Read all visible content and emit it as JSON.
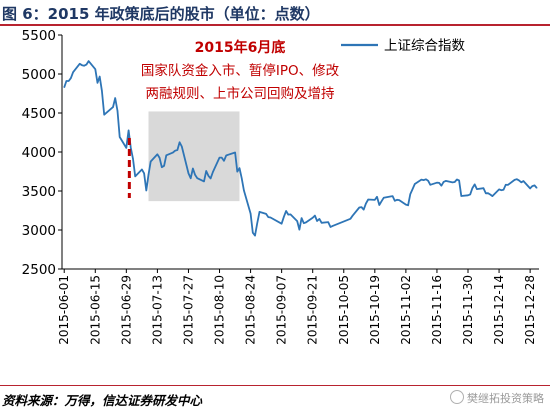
{
  "header": {
    "title": "图 6：2015 年政策底后的股市（单位：点数）"
  },
  "footer": {
    "source": "资料来源：万得，信达证券研发中心",
    "watermark": "樊继拓投资策略"
  },
  "chart_data": {
    "type": "line",
    "title": "",
    "xlabel": "",
    "ylabel": "",
    "ylim": [
      2500,
      5500
    ],
    "yticks": [
      2500,
      3000,
      3500,
      4000,
      4500,
      5000,
      5500
    ],
    "grid": false,
    "legend_position": "top-right",
    "x_tick_labels": [
      "2015-06-01",
      "2015-06-15",
      "2015-06-29",
      "2015-07-13",
      "2015-07-27",
      "2015-08-10",
      "2015-08-24",
      "2015-09-07",
      "2015-09-21",
      "2015-10-05",
      "2015-10-19",
      "2015-11-02",
      "2015-11-16",
      "2015-11-30",
      "2015-12-14",
      "2015-12-28"
    ],
    "x_range": [
      "2015-06-01",
      "2015-12-31"
    ],
    "series": [
      {
        "name": "上证综合指数",
        "color": "#2e75b6",
        "points": [
          [
            "2015-06-01",
            4828
          ],
          [
            "2015-06-02",
            4910
          ],
          [
            "2015-06-03",
            4910
          ],
          [
            "2015-06-04",
            4947
          ],
          [
            "2015-06-05",
            5023
          ],
          [
            "2015-06-08",
            5131
          ],
          [
            "2015-06-09",
            5113
          ],
          [
            "2015-06-10",
            5106
          ],
          [
            "2015-06-11",
            5121
          ],
          [
            "2015-06-12",
            5166
          ],
          [
            "2015-06-15",
            5062
          ],
          [
            "2015-06-16",
            4887
          ],
          [
            "2015-06-17",
            4967
          ],
          [
            "2015-06-18",
            4785
          ],
          [
            "2015-06-19",
            4478
          ],
          [
            "2015-06-23",
            4576
          ],
          [
            "2015-06-24",
            4691
          ],
          [
            "2015-06-25",
            4527
          ],
          [
            "2015-06-26",
            4192
          ],
          [
            "2015-06-29",
            4053
          ],
          [
            "2015-06-30",
            4277
          ],
          [
            "2015-07-01",
            4053
          ],
          [
            "2015-07-02",
            3913
          ],
          [
            "2015-07-03",
            3687
          ],
          [
            "2015-07-06",
            3776
          ],
          [
            "2015-07-07",
            3727
          ],
          [
            "2015-07-08",
            3507
          ],
          [
            "2015-07-09",
            3710
          ],
          [
            "2015-07-10",
            3878
          ],
          [
            "2015-07-13",
            3970
          ],
          [
            "2015-07-14",
            3924
          ],
          [
            "2015-07-15",
            3805
          ],
          [
            "2015-07-16",
            3823
          ],
          [
            "2015-07-17",
            3958
          ],
          [
            "2015-07-20",
            3992
          ],
          [
            "2015-07-21",
            4017
          ],
          [
            "2015-07-22",
            4026
          ],
          [
            "2015-07-23",
            4124
          ],
          [
            "2015-07-24",
            4070
          ],
          [
            "2015-07-27",
            3725
          ],
          [
            "2015-07-28",
            3663
          ],
          [
            "2015-07-29",
            3789
          ],
          [
            "2015-07-30",
            3706
          ],
          [
            "2015-07-31",
            3664
          ],
          [
            "2015-08-03",
            3623
          ],
          [
            "2015-08-04",
            3757
          ],
          [
            "2015-08-05",
            3695
          ],
          [
            "2015-08-06",
            3661
          ],
          [
            "2015-08-07",
            3744
          ],
          [
            "2015-08-10",
            3928
          ],
          [
            "2015-08-11",
            3928
          ],
          [
            "2015-08-12",
            3887
          ],
          [
            "2015-08-13",
            3955
          ],
          [
            "2015-08-14",
            3965
          ],
          [
            "2015-08-17",
            3993
          ],
          [
            "2015-08-18",
            3749
          ],
          [
            "2015-08-19",
            3794
          ],
          [
            "2015-08-20",
            3664
          ],
          [
            "2015-08-21",
            3508
          ],
          [
            "2015-08-24",
            3210
          ],
          [
            "2015-08-25",
            2965
          ],
          [
            "2015-08-26",
            2928
          ],
          [
            "2015-08-27",
            3084
          ],
          [
            "2015-08-28",
            3232
          ],
          [
            "2015-08-31",
            3206
          ],
          [
            "2015-09-01",
            3166
          ],
          [
            "2015-09-02",
            3160
          ],
          [
            "2015-09-07",
            3081
          ],
          [
            "2015-09-08",
            3170
          ],
          [
            "2015-09-09",
            3243
          ],
          [
            "2015-09-10",
            3197
          ],
          [
            "2015-09-11",
            3200
          ],
          [
            "2015-09-14",
            3114
          ],
          [
            "2015-09-15",
            3005
          ],
          [
            "2015-09-16",
            3152
          ],
          [
            "2015-09-17",
            3087
          ],
          [
            "2015-09-18",
            3098
          ],
          [
            "2015-09-21",
            3157
          ],
          [
            "2015-09-22",
            3185
          ],
          [
            "2015-09-23",
            3115
          ],
          [
            "2015-09-24",
            3142
          ],
          [
            "2015-09-25",
            3092
          ],
          [
            "2015-09-28",
            3101
          ],
          [
            "2015-09-29",
            3038
          ],
          [
            "2015-09-30",
            3053
          ],
          [
            "2015-10-08",
            3143
          ],
          [
            "2015-10-09",
            3183
          ],
          [
            "2015-10-12",
            3288
          ],
          [
            "2015-10-13",
            3293
          ],
          [
            "2015-10-14",
            3262
          ],
          [
            "2015-10-15",
            3338
          ],
          [
            "2015-10-16",
            3391
          ],
          [
            "2015-10-19",
            3386
          ],
          [
            "2015-10-20",
            3425
          ],
          [
            "2015-10-21",
            3320
          ],
          [
            "2015-10-22",
            3368
          ],
          [
            "2015-10-23",
            3413
          ],
          [
            "2015-10-26",
            3430
          ],
          [
            "2015-10-27",
            3434
          ],
          [
            "2015-10-28",
            3375
          ],
          [
            "2015-10-29",
            3387
          ],
          [
            "2015-10-30",
            3383
          ],
          [
            "2015-11-02",
            3326
          ],
          [
            "2015-11-03",
            3317
          ],
          [
            "2015-11-04",
            3460
          ],
          [
            "2015-11-05",
            3522
          ],
          [
            "2015-11-06",
            3590
          ],
          [
            "2015-11-09",
            3646
          ],
          [
            "2015-11-10",
            3640
          ],
          [
            "2015-11-11",
            3650
          ],
          [
            "2015-11-12",
            3632
          ],
          [
            "2015-11-13",
            3580
          ],
          [
            "2015-11-16",
            3607
          ],
          [
            "2015-11-17",
            3604
          ],
          [
            "2015-11-18",
            3568
          ],
          [
            "2015-11-19",
            3617
          ],
          [
            "2015-11-20",
            3630
          ],
          [
            "2015-11-23",
            3610
          ],
          [
            "2015-11-24",
            3616
          ],
          [
            "2015-11-25",
            3647
          ],
          [
            "2015-11-26",
            3635
          ],
          [
            "2015-11-27",
            3436
          ],
          [
            "2015-11-30",
            3445
          ],
          [
            "2015-12-01",
            3456
          ],
          [
            "2015-12-02",
            3537
          ],
          [
            "2015-12-03",
            3585
          ],
          [
            "2015-12-04",
            3525
          ],
          [
            "2015-12-07",
            3536
          ],
          [
            "2015-12-08",
            3470
          ],
          [
            "2015-12-09",
            3472
          ],
          [
            "2015-12-10",
            3455
          ],
          [
            "2015-12-11",
            3435
          ],
          [
            "2015-12-14",
            3520
          ],
          [
            "2015-12-15",
            3510
          ],
          [
            "2015-12-16",
            3516
          ],
          [
            "2015-12-17",
            3580
          ],
          [
            "2015-12-18",
            3578
          ],
          [
            "2015-12-21",
            3642
          ],
          [
            "2015-12-22",
            3651
          ],
          [
            "2015-12-23",
            3636
          ],
          [
            "2015-12-24",
            3612
          ],
          [
            "2015-12-25",
            3627
          ],
          [
            "2015-12-28",
            3533
          ],
          [
            "2015-12-29",
            3563
          ],
          [
            "2015-12-30",
            3572
          ],
          [
            "2015-12-31",
            3539
          ]
        ]
      }
    ],
    "annotations": {
      "event_marker": {
        "x": "2015-06-29",
        "color": "#c00000",
        "style": "dashed",
        "text_lines": [
          "2015年6月底",
          "国家队资金入市、暂停IPO、修改",
          "两融规则、上市公司回购及增持"
        ],
        "text_color": "#c00000"
      },
      "highlight_region": {
        "x_start": "2015-07-09",
        "x_end": "2015-08-19",
        "y_range": [
          3370,
          4520
        ],
        "color": "#d9d9d9"
      }
    }
  }
}
